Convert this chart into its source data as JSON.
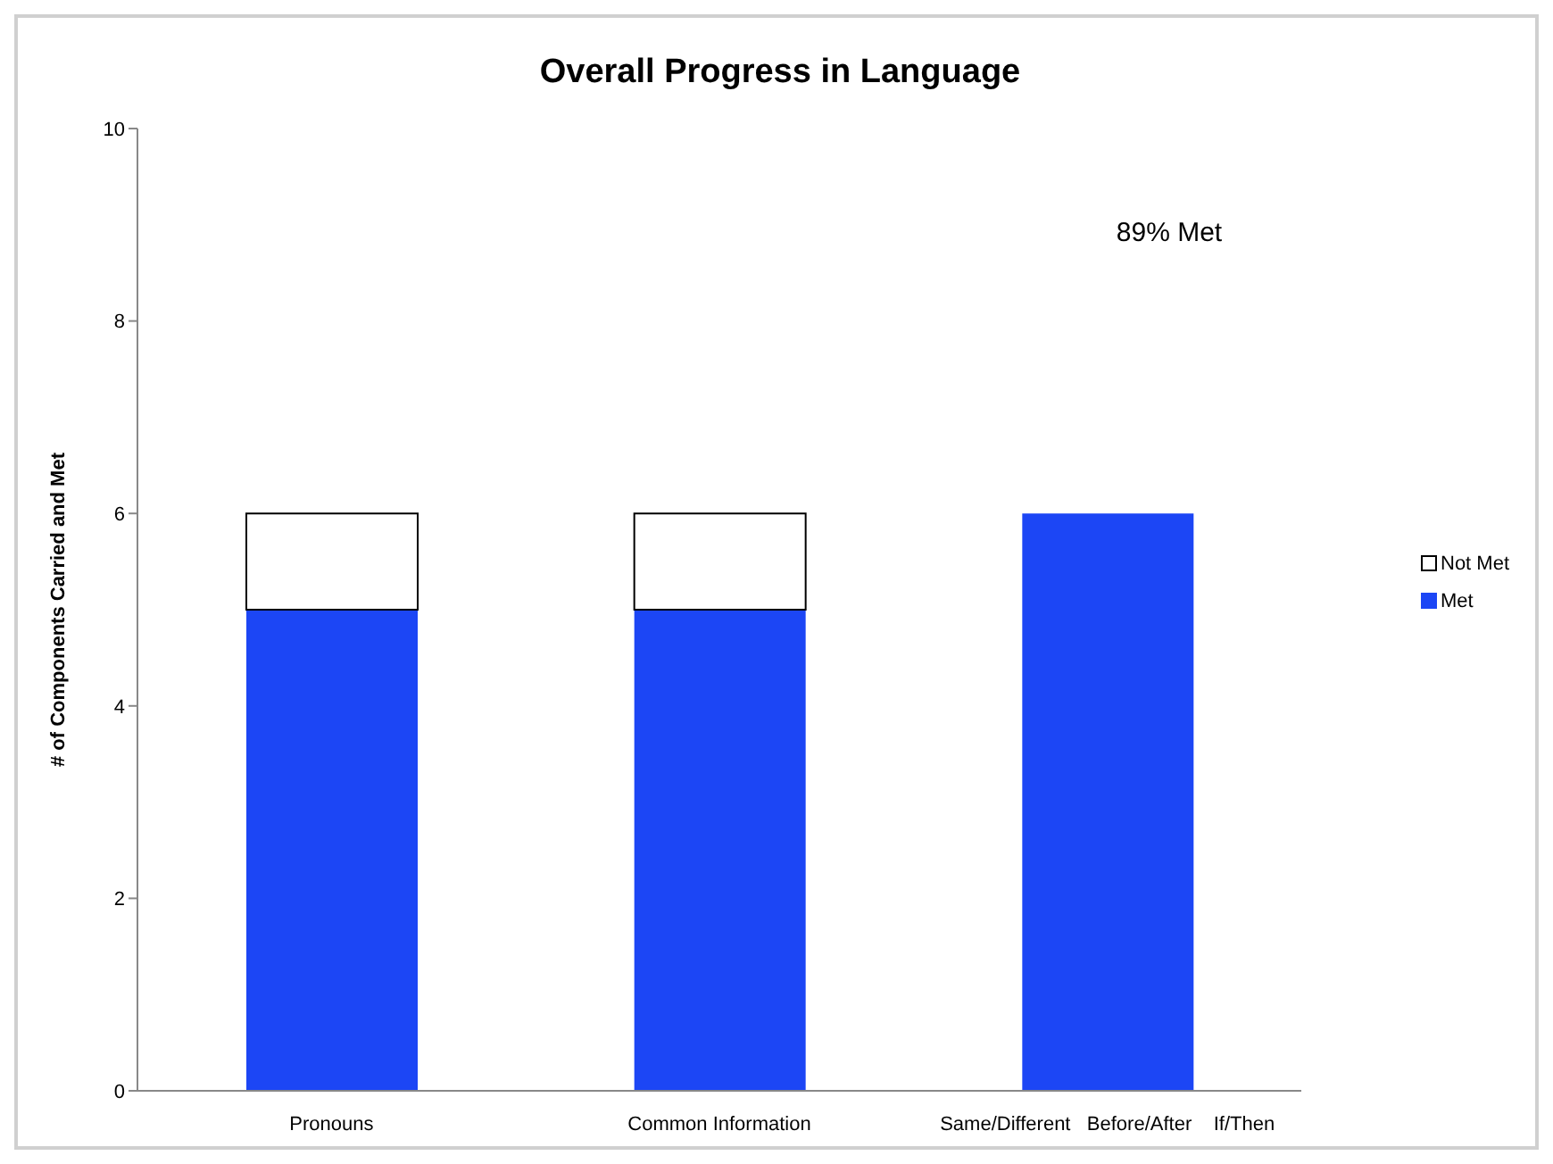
{
  "chart_data": {
    "type": "bar",
    "title": "Overall Progress in Language",
    "ylabel": "# of Components Carried and Met",
    "categories": [
      "Pronouns",
      "Common Information",
      "Same/Different   Before/After    If/Then"
    ],
    "series": [
      {
        "name": "Met",
        "color": "#1c46f5",
        "values": [
          5,
          5,
          6
        ]
      },
      {
        "name": "Not Met",
        "color": "#ffffff",
        "values": [
          1,
          1,
          0
        ]
      }
    ],
    "stacked": true,
    "ylim": [
      0,
      10
    ],
    "yticks": [
      0,
      2,
      4,
      6,
      8,
      10
    ],
    "grid": false,
    "legend": "right",
    "annotations": [
      "89% Met"
    ]
  }
}
